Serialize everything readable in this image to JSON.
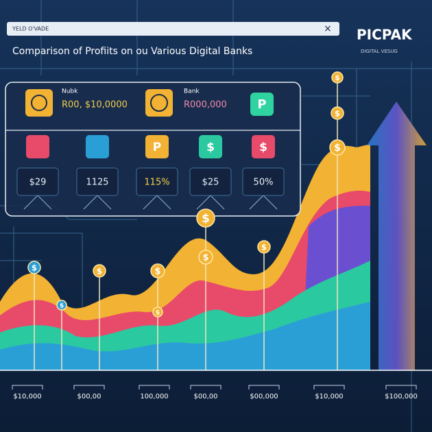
{
  "header": {
    "tab": "YELD O'VADE",
    "close": "×",
    "title": "Comparison of Profiits on ou Various Digital Banks"
  },
  "brand": {
    "name": "PICPAK",
    "tagline": "DIGITAL VESUG"
  },
  "panel": {
    "accounts": [
      {
        "label": "Nubk",
        "amount": "R00, $10,0000"
      },
      {
        "label": "Bank",
        "amount": "R000,000"
      }
    ],
    "cards": [
      "$29",
      "1125",
      "115%",
      "$25",
      "50%"
    ]
  },
  "glyphs": {
    "p": "P",
    "dollar": "$"
  },
  "axis_labels": [
    "$10,000",
    "$00,00",
    "100,000",
    "$00,00",
    "$00,000",
    "$10,000",
    "$100,000"
  ]
}
